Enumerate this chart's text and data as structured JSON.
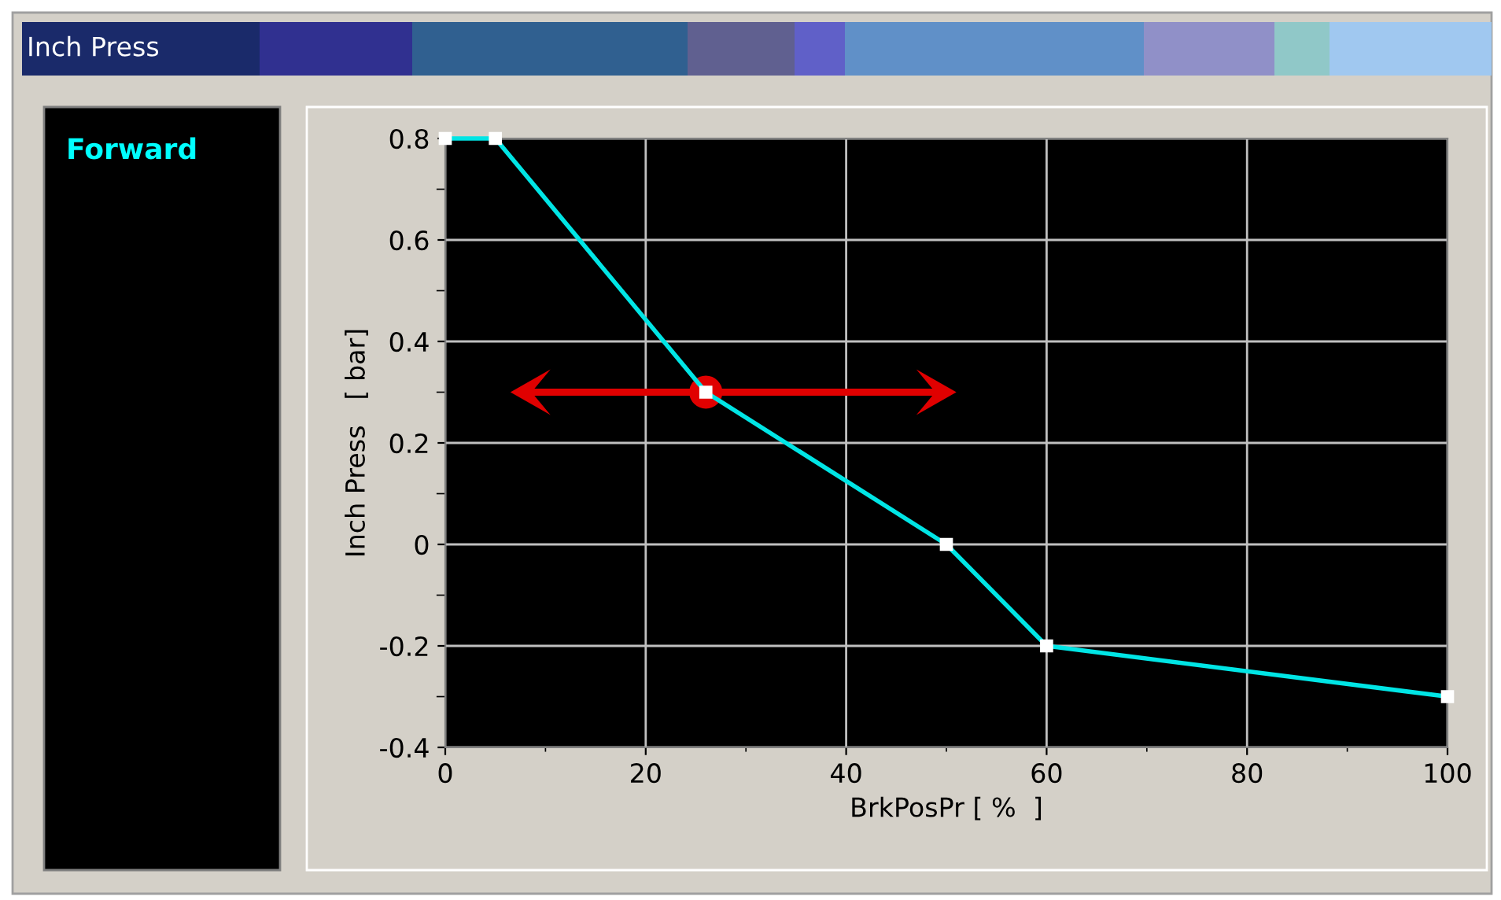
{
  "chart_data": {
    "type": "line",
    "title": "Inch Press",
    "xlabel": "BrkPosPr [ %  ]",
    "ylabel": "Inch Press   [ bar]",
    "annotations": [
      "Forward"
    ],
    "series": [
      {
        "color": "#00e5e5",
        "x": [
          0,
          5,
          26,
          50,
          60,
          100
        ],
        "values": [
          0.8,
          0.8,
          0.3,
          0,
          -0.2,
          -0.3
        ],
        "marker": "square"
      },
      {
        "type": "scatter",
        "color": "#e00000",
        "x": [
          26
        ],
        "values": [
          0.3
        ],
        "marker": "circle"
      }
    ],
    "xlim": [
      0,
      100
    ],
    "xticks": [
      0,
      20,
      40,
      60,
      80,
      100
    ],
    "ylim": [
      -0.4,
      0.8
    ],
    "yticks": [
      -0.4,
      -0.2,
      0,
      0.2,
      0.4,
      0.6,
      0.8
    ],
    "grid": true,
    "legend": false
  }
}
